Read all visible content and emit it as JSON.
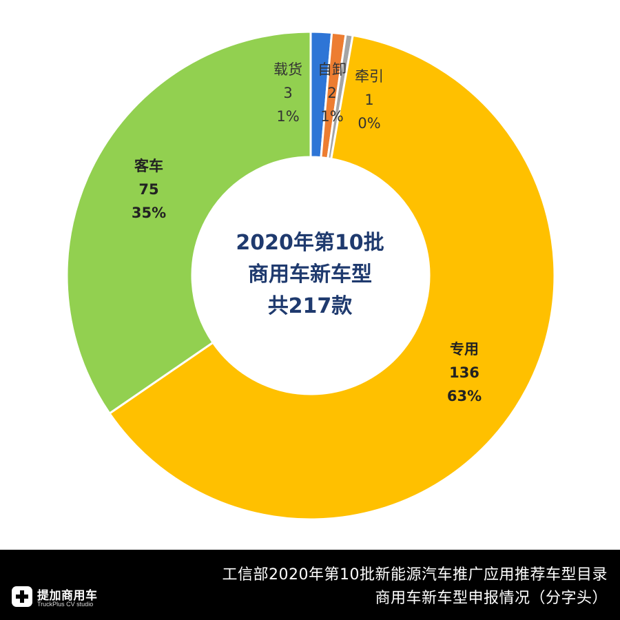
{
  "chart_data": {
    "type": "pie",
    "variant": "donut",
    "center_title": [
      "2020年第10批",
      "商用车新车型",
      "共217款"
    ],
    "series": [
      {
        "name": "载货",
        "value": 3,
        "percent": "1%",
        "color": "#2e75d6"
      },
      {
        "name": "自卸",
        "value": 2,
        "percent": "1%",
        "color": "#ed7d31"
      },
      {
        "name": "牵引",
        "value": 1,
        "percent": "0%",
        "color": "#a5a5a5"
      },
      {
        "name": "专用",
        "value": 136,
        "percent": "63%",
        "color": "#ffc000"
      },
      {
        "name": "客车",
        "value": 75,
        "percent": "35%",
        "color": "#92d050"
      }
    ]
  },
  "footer": {
    "line1": "工信部2020年第10批新能源汽车推广应用推荐车型目录",
    "line2": "商用车新车型申报情况（分字头）",
    "logo_text": "提加商用车",
    "logo_subtext": "TruckPlus CV studio"
  }
}
